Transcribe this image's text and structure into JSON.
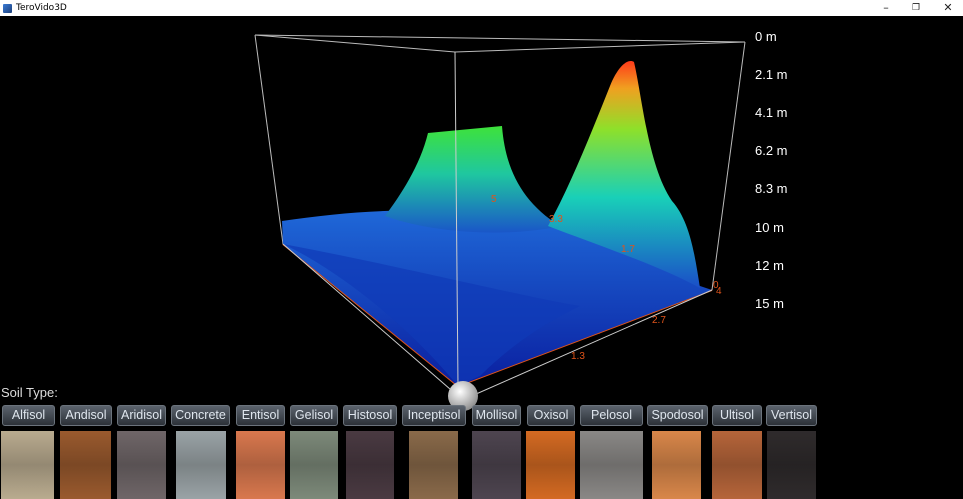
{
  "window": {
    "title": "TeroVido3D",
    "minimize": "–",
    "restore": "❐",
    "close": "✕"
  },
  "depth_axis": [
    "0 m",
    "2.1 m",
    "4.1 m",
    "6.2 m",
    "8.3 m",
    "10 m",
    "12 m",
    "15 m"
  ],
  "floor_axis_labels": [
    "1.3",
    "2.7",
    "4",
    "0"
  ],
  "surface_labels": [
    "5",
    "3.3",
    "1.7"
  ],
  "soil_type_label": "Soil Type:",
  "soil_types": [
    {
      "label": "Alfisol",
      "color": "#b9ab8f"
    },
    {
      "label": "Andisol",
      "color": "#9a5a2e"
    },
    {
      "label": "Aridisol",
      "color": "#6f6668"
    },
    {
      "label": "Concrete",
      "color": "#9aa3a6"
    },
    {
      "label": "Entisol",
      "color": "#d9784e"
    },
    {
      "label": "Gelisol",
      "color": "#7d8a7a"
    },
    {
      "label": "Histosol",
      "color": "#4a3a42"
    },
    {
      "label": "Inceptisol",
      "color": "#8a6a4a"
    },
    {
      "label": "Mollisol",
      "color": "#4e4550"
    },
    {
      "label": "Oxisol",
      "color": "#d46a22"
    },
    {
      "label": "Pelosol",
      "color": "#8a8886"
    },
    {
      "label": "Spodosol",
      "color": "#d9874a"
    },
    {
      "label": "Ultisol",
      "color": "#b6653a"
    },
    {
      "label": "Vertisol",
      "color": "#2f2b2c"
    }
  ]
}
